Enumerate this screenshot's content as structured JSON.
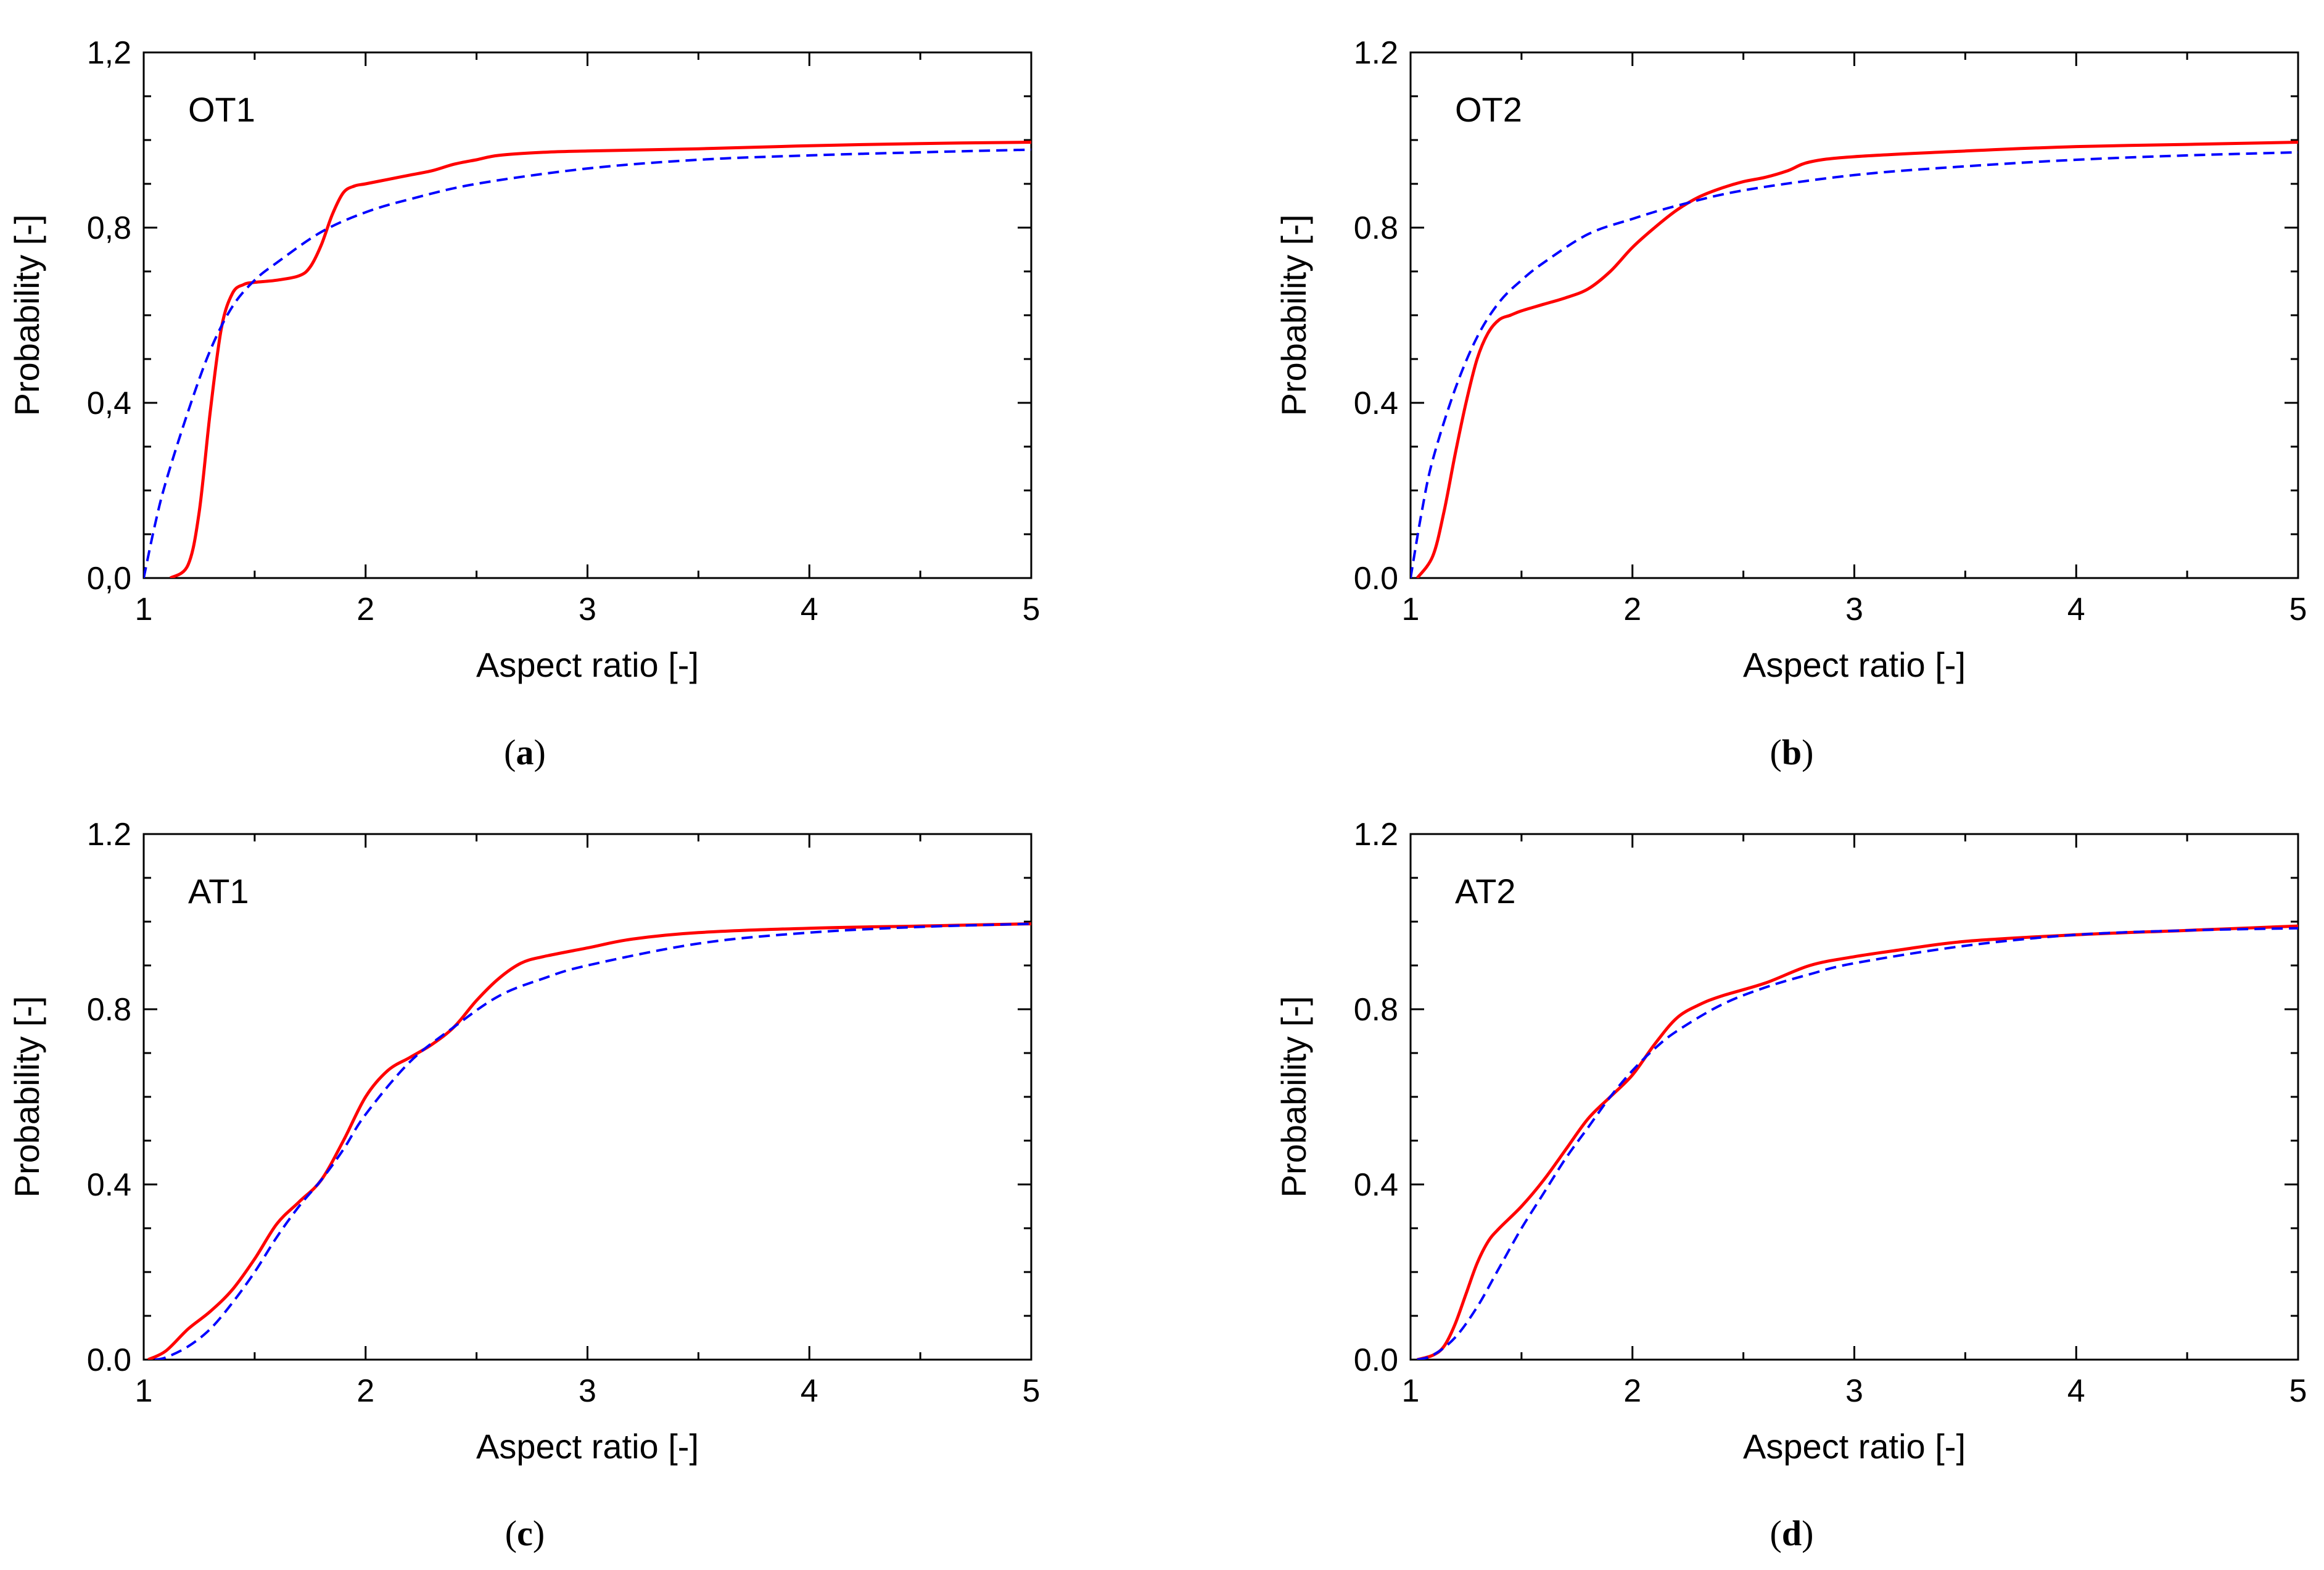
{
  "chart_data": [
    {
      "type": "line",
      "panel_label": "a",
      "annotation": "OT1",
      "xlabel": "Aspect ratio [-]",
      "ylabel": "Probability [-]",
      "xlim": [
        1,
        5
      ],
      "ylim": [
        0,
        1.2
      ],
      "xticks": [
        "1",
        "2",
        "3",
        "4",
        "5"
      ],
      "yticks": [
        "0,0",
        "0,4",
        "0,8",
        "1,2"
      ],
      "grid": false,
      "series": [
        {
          "style": "solid",
          "color": "#ff0000",
          "x": [
            1.12,
            1.2,
            1.25,
            1.3,
            1.35,
            1.4,
            1.45,
            1.5,
            1.6,
            1.7,
            1.75,
            1.8,
            1.85,
            1.9,
            1.95,
            2.0,
            2.1,
            2.2,
            2.3,
            2.4,
            2.5,
            2.6,
            2.8,
            3.0,
            3.5,
            4.0,
            4.5,
            5.0
          ],
          "y": [
            0.0,
            0.03,
            0.15,
            0.38,
            0.57,
            0.65,
            0.67,
            0.675,
            0.68,
            0.69,
            0.71,
            0.76,
            0.83,
            0.88,
            0.895,
            0.9,
            0.91,
            0.92,
            0.93,
            0.945,
            0.955,
            0.965,
            0.972,
            0.975,
            0.98,
            0.987,
            0.992,
            0.995
          ]
        },
        {
          "style": "dashed",
          "color": "#0000ff",
          "x": [
            1.0,
            1.05,
            1.1,
            1.2,
            1.3,
            1.4,
            1.5,
            1.6,
            1.8,
            2.0,
            2.2,
            2.5,
            3.0,
            3.5,
            4.0,
            4.5,
            5.0
          ],
          "y": [
            0.0,
            0.12,
            0.22,
            0.38,
            0.52,
            0.62,
            0.68,
            0.72,
            0.79,
            0.835,
            0.865,
            0.9,
            0.935,
            0.955,
            0.965,
            0.972,
            0.978
          ]
        }
      ]
    },
    {
      "type": "line",
      "panel_label": "b",
      "annotation": "OT2",
      "xlabel": "Aspect ratio [-]",
      "ylabel": "Probability [-]",
      "xlim": [
        1,
        5
      ],
      "ylim": [
        0,
        1.2
      ],
      "xticks": [
        "1",
        "2",
        "3",
        "4",
        "5"
      ],
      "yticks": [
        "0.0",
        "0.4",
        "0.8",
        "1.2"
      ],
      "grid": false,
      "series": [
        {
          "style": "solid",
          "color": "#ff0000",
          "x": [
            1.03,
            1.1,
            1.15,
            1.2,
            1.25,
            1.3,
            1.35,
            1.4,
            1.45,
            1.5,
            1.6,
            1.7,
            1.8,
            1.9,
            2.0,
            2.1,
            2.2,
            2.3,
            2.4,
            2.5,
            2.6,
            2.7,
            2.8,
            3.0,
            3.5,
            4.0,
            4.5,
            5.0
          ],
          "y": [
            0.0,
            0.05,
            0.15,
            0.28,
            0.4,
            0.5,
            0.56,
            0.59,
            0.6,
            0.61,
            0.625,
            0.64,
            0.66,
            0.7,
            0.755,
            0.8,
            0.84,
            0.87,
            0.89,
            0.905,
            0.915,
            0.93,
            0.95,
            0.962,
            0.975,
            0.985,
            0.99,
            0.995
          ]
        },
        {
          "style": "dashed",
          "color": "#0000ff",
          "x": [
            1.0,
            1.05,
            1.1,
            1.2,
            1.3,
            1.4,
            1.5,
            1.6,
            1.8,
            2.0,
            2.2,
            2.5,
            3.0,
            3.5,
            4.0,
            4.5,
            5.0
          ],
          "y": [
            0.0,
            0.15,
            0.27,
            0.43,
            0.55,
            0.63,
            0.68,
            0.72,
            0.785,
            0.82,
            0.85,
            0.885,
            0.92,
            0.94,
            0.955,
            0.965,
            0.972
          ]
        }
      ]
    },
    {
      "type": "line",
      "panel_label": "c",
      "annotation": "AT1",
      "xlabel": "Aspect ratio [-]",
      "ylabel": "Probability [-]",
      "xlim": [
        1,
        5
      ],
      "ylim": [
        0,
        1.2
      ],
      "xticks": [
        "1",
        "2",
        "3",
        "4",
        "5"
      ],
      "yticks": [
        "0.0",
        "0.4",
        "0.8",
        "1.2"
      ],
      "grid": false,
      "series": [
        {
          "style": "solid",
          "color": "#ff0000",
          "x": [
            1.02,
            1.1,
            1.2,
            1.3,
            1.4,
            1.5,
            1.6,
            1.7,
            1.8,
            1.9,
            2.0,
            2.1,
            2.2,
            2.3,
            2.4,
            2.5,
            2.6,
            2.7,
            2.8,
            3.0,
            3.2,
            3.5,
            4.0,
            4.5,
            5.0
          ],
          "y": [
            0.0,
            0.02,
            0.07,
            0.11,
            0.16,
            0.23,
            0.31,
            0.36,
            0.41,
            0.5,
            0.6,
            0.66,
            0.69,
            0.72,
            0.76,
            0.82,
            0.87,
            0.905,
            0.92,
            0.94,
            0.96,
            0.975,
            0.985,
            0.99,
            0.995
          ]
        },
        {
          "style": "dashed",
          "color": "#0000ff",
          "x": [
            1.05,
            1.1,
            1.2,
            1.3,
            1.4,
            1.5,
            1.6,
            1.7,
            1.8,
            1.9,
            2.0,
            2.2,
            2.4,
            2.6,
            2.8,
            3.0,
            3.5,
            4.0,
            4.5,
            5.0
          ],
          "y": [
            0.0,
            0.005,
            0.03,
            0.07,
            0.13,
            0.2,
            0.28,
            0.35,
            0.41,
            0.48,
            0.56,
            0.68,
            0.76,
            0.83,
            0.87,
            0.9,
            0.95,
            0.975,
            0.988,
            0.995
          ]
        }
      ]
    },
    {
      "type": "line",
      "panel_label": "d",
      "annotation": "AT2",
      "xlabel": "Aspect ratio [-]",
      "ylabel": "Probability [-]",
      "xlim": [
        1,
        5
      ],
      "ylim": [
        0,
        1.2
      ],
      "xticks": [
        "1",
        "2",
        "3",
        "4",
        "5"
      ],
      "yticks": [
        "0.0",
        "0.4",
        "0.8",
        "1.2"
      ],
      "grid": false,
      "series": [
        {
          "style": "solid",
          "color": "#ff0000",
          "x": [
            1.03,
            1.1,
            1.15,
            1.2,
            1.25,
            1.3,
            1.35,
            1.4,
            1.5,
            1.6,
            1.7,
            1.8,
            1.9,
            2.0,
            2.1,
            2.2,
            2.3,
            2.4,
            2.6,
            2.8,
            3.0,
            3.2,
            3.5,
            4.0,
            4.5,
            5.0
          ],
          "y": [
            0.0,
            0.01,
            0.03,
            0.08,
            0.15,
            0.22,
            0.27,
            0.3,
            0.35,
            0.41,
            0.48,
            0.55,
            0.6,
            0.65,
            0.72,
            0.78,
            0.81,
            0.83,
            0.86,
            0.9,
            0.92,
            0.935,
            0.955,
            0.97,
            0.98,
            0.99
          ]
        },
        {
          "style": "dashed",
          "color": "#0000ff",
          "x": [
            1.03,
            1.1,
            1.2,
            1.3,
            1.4,
            1.5,
            1.6,
            1.7,
            1.8,
            1.9,
            2.0,
            2.1,
            2.2,
            2.4,
            2.6,
            2.8,
            3.0,
            3.5,
            4.0,
            4.5,
            5.0
          ],
          "y": [
            0.0,
            0.01,
            0.05,
            0.12,
            0.21,
            0.3,
            0.38,
            0.46,
            0.53,
            0.6,
            0.66,
            0.71,
            0.75,
            0.81,
            0.85,
            0.88,
            0.905,
            0.945,
            0.97,
            0.98,
            0.985
          ]
        }
      ]
    }
  ]
}
